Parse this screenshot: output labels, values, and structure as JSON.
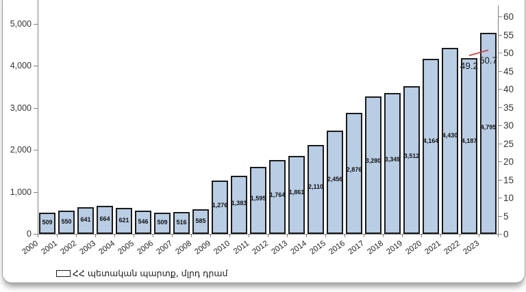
{
  "chart_data": {
    "type": "bar",
    "categories": [
      "2000",
      "2001",
      "2002",
      "2003",
      "2004",
      "2005",
      "2006",
      "2007",
      "2008",
      "2009",
      "2010",
      "2011",
      "2012",
      "2013",
      "2014",
      "2015",
      "2016",
      "2017",
      "2018",
      "2019",
      "2020",
      "2021",
      "2022",
      "2023"
    ],
    "series": [
      {
        "name": "ՀՀ պետական պարտք, մլրդ դրամ",
        "type": "bar",
        "axis": "left",
        "color": "#b9cde4",
        "border_color": "#1a1a1a",
        "values": [
          509,
          550,
          641,
          664,
          621,
          546,
          509,
          516,
          585,
          1276,
          1383,
          1595,
          1764,
          1861,
          2110,
          2456,
          2876,
          3280,
          3349,
          3512,
          4164,
          4430,
          4187,
          4795
        ],
        "labels": [
          "509",
          "550",
          "641",
          "664",
          "621",
          "546",
          "509",
          "516",
          "585",
          "1,276",
          "1,383",
          "1,595",
          "1,764",
          "1,861",
          "2,110",
          "2,456",
          "2,876",
          "3,280",
          "3,349",
          "3,512",
          "4,164",
          "4,430",
          "4,187",
          "4,795"
        ]
      },
      {
        "name": "debt-percent-line",
        "type": "line",
        "axis": "right",
        "color": "#c23b3b",
        "points": [
          {
            "category": "2022",
            "value": 49.2,
            "label": "49.2"
          },
          {
            "category": "2023",
            "value": 50.7,
            "label": "50.7"
          }
        ]
      }
    ],
    "axes": {
      "left": {
        "min": 0,
        "max": 5000,
        "tick_step": 1000,
        "tick_labels": [
          "0",
          "1,000",
          "2,000",
          "3,000",
          "4,000",
          "5,000"
        ]
      },
      "right": {
        "min": 0,
        "max": 60,
        "tick_step": 5,
        "tick_labels": [
          "0",
          "5",
          "10",
          "15",
          "20",
          "25",
          "30",
          "35",
          "40",
          "45",
          "50",
          "55",
          "60"
        ]
      }
    },
    "legend": {
      "position": "bottom-left",
      "entries": [
        {
          "label": "ՀՀ պետական պարտք, մլրդ դրամ",
          "swatch_color": "#b9cde4"
        }
      ]
    },
    "grid": false
  },
  "colors": {
    "axis": "#808080",
    "tick_text": "#333333",
    "data_label_text": "#111111",
    "bar_fill": "#b9cde4",
    "bar_border": "#1a1a1a",
    "line": "#c23b3b"
  }
}
